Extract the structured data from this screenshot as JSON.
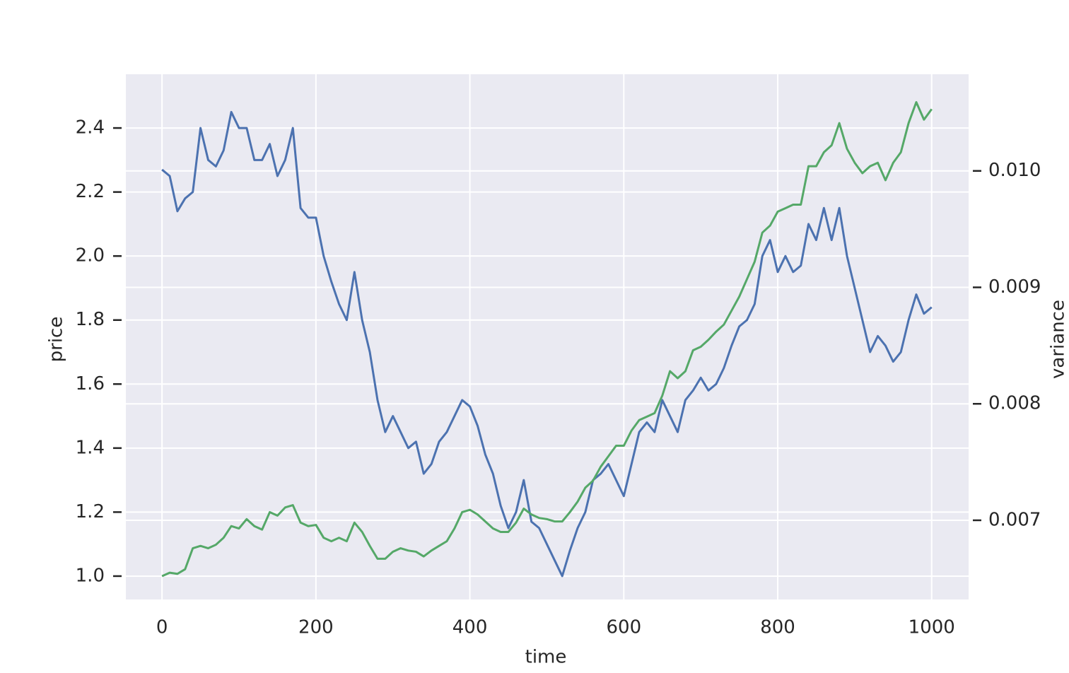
{
  "chart_data": {
    "type": "line",
    "xlabel": "time",
    "ylabel": "price",
    "y2label": "variance",
    "x": [
      0,
      10,
      20,
      30,
      40,
      50,
      60,
      70,
      80,
      90,
      100,
      110,
      120,
      130,
      140,
      150,
      160,
      170,
      180,
      190,
      200,
      210,
      220,
      230,
      240,
      250,
      260,
      270,
      280,
      290,
      300,
      310,
      320,
      330,
      340,
      350,
      360,
      370,
      380,
      390,
      400,
      410,
      420,
      430,
      440,
      450,
      460,
      470,
      480,
      490,
      500,
      510,
      520,
      530,
      540,
      550,
      560,
      570,
      580,
      590,
      600,
      610,
      620,
      630,
      640,
      650,
      660,
      670,
      680,
      690,
      700,
      710,
      720,
      730,
      740,
      750,
      760,
      770,
      780,
      790,
      800,
      810,
      820,
      830,
      840,
      850,
      860,
      870,
      880,
      890,
      900,
      910,
      920,
      930,
      940,
      950,
      960,
      970,
      980,
      990,
      1000
    ],
    "series": [
      {
        "name": "price",
        "color": "#4c72b0",
        "values": [
          2.27,
          2.25,
          2.14,
          2.18,
          2.2,
          2.4,
          2.3,
          2.28,
          2.33,
          2.45,
          2.4,
          2.4,
          2.3,
          2.3,
          2.35,
          2.25,
          2.3,
          2.4,
          2.15,
          2.12,
          2.12,
          2.0,
          1.92,
          1.85,
          1.8,
          1.95,
          1.8,
          1.7,
          1.55,
          1.45,
          1.5,
          1.45,
          1.4,
          1.42,
          1.32,
          1.35,
          1.42,
          1.45,
          1.5,
          1.55,
          1.53,
          1.47,
          1.38,
          1.32,
          1.22,
          1.15,
          1.2,
          1.3,
          1.17,
          1.15,
          1.1,
          1.05,
          1.0,
          1.08,
          1.15,
          1.2,
          1.3,
          1.32,
          1.35,
          1.3,
          1.25,
          1.35,
          1.45,
          1.48,
          1.45,
          1.55,
          1.5,
          1.45,
          1.55,
          1.58,
          1.62,
          1.58,
          1.6,
          1.65,
          1.72,
          1.78,
          1.8,
          1.85,
          2.0,
          2.05,
          1.95,
          2.0,
          1.95,
          1.97,
          2.1,
          2.05,
          2.15,
          2.05,
          2.15,
          2.0,
          1.9,
          1.8,
          1.7,
          1.75,
          1.72,
          1.67,
          1.7,
          1.8,
          1.88,
          1.82,
          1.84
        ]
      },
      {
        "name": "variance",
        "color": "#55a868",
        "axis": "y2",
        "values": [
          0.00652,
          0.00655,
          0.00654,
          0.00658,
          0.00676,
          0.00678,
          0.00676,
          0.00679,
          0.00685,
          0.00695,
          0.00693,
          0.00701,
          0.00695,
          0.00692,
          0.00707,
          0.00704,
          0.00711,
          0.00713,
          0.00698,
          0.00695,
          0.00696,
          0.00685,
          0.00682,
          0.00685,
          0.00682,
          0.00698,
          0.0069,
          0.00678,
          0.00667,
          0.00667,
          0.00673,
          0.00676,
          0.00674,
          0.00673,
          0.00669,
          0.00674,
          0.00678,
          0.00682,
          0.00693,
          0.00707,
          0.00709,
          0.00705,
          0.00699,
          0.00693,
          0.0069,
          0.0069,
          0.00698,
          0.0071,
          0.00705,
          0.00702,
          0.00701,
          0.00699,
          0.00699,
          0.00707,
          0.00716,
          0.00728,
          0.00734,
          0.00746,
          0.00755,
          0.00764,
          0.00764,
          0.00777,
          0.00786,
          0.00789,
          0.00792,
          0.00807,
          0.00828,
          0.00822,
          0.00828,
          0.00846,
          0.00849,
          0.00855,
          0.00862,
          0.00868,
          0.0088,
          0.00892,
          0.00907,
          0.00922,
          0.00947,
          0.00953,
          0.00965,
          0.00968,
          0.00971,
          0.00971,
          0.01004,
          0.01004,
          0.01016,
          0.01022,
          0.01041,
          0.01019,
          0.01007,
          0.00998,
          0.01004,
          0.01007,
          0.00992,
          0.01007,
          0.01016,
          0.01041,
          0.01059,
          0.01044,
          0.01053
        ]
      }
    ],
    "xlim": [
      -47,
      1048
    ],
    "xticks": [
      0,
      200,
      400,
      600,
      800,
      1000
    ],
    "ylim": [
      0.927,
      2.568
    ],
    "yticks": [
      {
        "value": 1.0,
        "label": "1.0"
      },
      1.2,
      1.4,
      1.6,
      1.8,
      {
        "value": 2.0,
        "label": "2.0"
      },
      2.2,
      2.4
    ],
    "y2lim": [
      0.00632,
      0.01083
    ],
    "y2ticks": [
      0.007,
      0.008,
      0.009,
      {
        "value": 0.01,
        "label": "0.010"
      }
    ],
    "grid": true
  }
}
